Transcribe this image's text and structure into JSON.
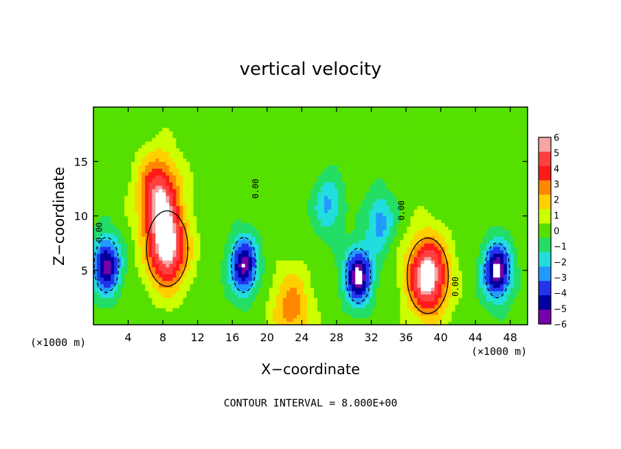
{
  "chart_data": {
    "type": "heatmap",
    "title": "vertical velocity",
    "xlabel": "X−coordinate",
    "ylabel": "Z−coordinate",
    "x_unit": "(×1000 m)",
    "xlim": [
      0,
      50
    ],
    "ylim": [
      0,
      20
    ],
    "x_ticks": [
      4,
      8,
      12,
      16,
      20,
      24,
      28,
      32,
      36,
      40,
      44,
      48
    ],
    "y_ticks": [
      5,
      10,
      15
    ],
    "colorbar": {
      "ticks": [
        6,
        5,
        4,
        3,
        2,
        1,
        0,
        -1,
        -2,
        -3,
        -4,
        -5,
        -6
      ],
      "tick_labels": [
        "6",
        "5",
        "4",
        "3",
        "2",
        "1",
        "0",
        "−1",
        "−2",
        "−3",
        "−4",
        "−5",
        "−6"
      ],
      "colors": [
        "#f4a6a6",
        "#ff4040",
        "#ff1a1a",
        "#ff8800",
        "#ffd000",
        "#ccff00",
        "#55e000",
        "#22dd66",
        "#22dddd",
        "#2299ff",
        "#2233ee",
        "#0000a0",
        "#7700aa"
      ]
    },
    "contour_label": "0.00",
    "features": [
      {
        "kind": "updraft",
        "x": 8.5,
        "z": 7.0,
        "peak": 6.5
      },
      {
        "kind": "updraft",
        "x": 7.5,
        "z": 12.0,
        "peak": 5.5
      },
      {
        "kind": "updraft",
        "x": 38.5,
        "z": 4.5,
        "peak": 7.0
      },
      {
        "kind": "updraft",
        "x": 22.8,
        "z": 1.5,
        "peak": 3.0
      },
      {
        "kind": "downdraft",
        "x": 1.5,
        "z": 5.5,
        "peak": -6.0
      },
      {
        "kind": "downdraft",
        "x": 17.3,
        "z": 5.5,
        "peak": -6.0
      },
      {
        "kind": "downdraft",
        "x": 30.5,
        "z": 4.5,
        "peak": -6.5
      },
      {
        "kind": "downdraft",
        "x": 46.5,
        "z": 5.0,
        "peak": -6.5
      },
      {
        "kind": "downdraft",
        "x": 27.0,
        "z": 11.0,
        "peak": -2.8
      },
      {
        "kind": "downdraft",
        "x": 33.0,
        "z": 9.5,
        "peak": -3.0
      }
    ]
  },
  "footer": "CONTOUR INTERVAL = 8.000E+00"
}
